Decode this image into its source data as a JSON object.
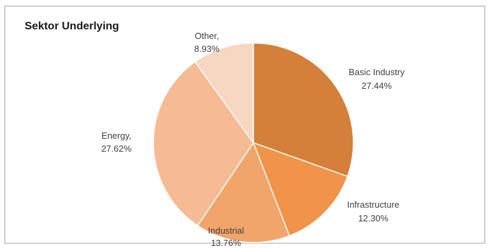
{
  "chart_data": {
    "type": "pie",
    "title": "Sektor Underlying",
    "slices": [
      {
        "label": "Basic Industry",
        "label_text": "Basic Industry",
        "pct_text": "27.44%",
        "value": 27.44,
        "color": "#d4803a"
      },
      {
        "label": "Infrastructure",
        "label_text": "Infrastructure",
        "pct_text": "12.30%",
        "value": 12.3,
        "color": "#ef9448"
      },
      {
        "label": "Industrial",
        "label_text": "Industrial",
        "pct_text": "13.76%",
        "value": 13.76,
        "color": "#f2a56b"
      },
      {
        "label": "Energy",
        "label_text": "Energy,",
        "pct_text": "27.62%",
        "value": 27.62,
        "color": "#f5bb95"
      },
      {
        "label": "Other",
        "label_text": "Other,",
        "pct_text": "8.93%",
        "value": 8.93,
        "color": "#f7d6c2"
      }
    ],
    "start_angle": "12 o'clock",
    "direction": "clockwise",
    "legend": "none"
  }
}
